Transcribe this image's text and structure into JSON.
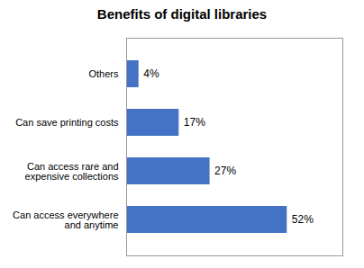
{
  "chart_data": {
    "type": "bar",
    "title": "Benefits of digital libraries",
    "categories": [
      "Others",
      "Can save printing costs",
      "Can access rare and\nexpensive collections",
      "Can access everywhere\nand anytime"
    ],
    "values": [
      4,
      17,
      27,
      52
    ],
    "value_labels": [
      "4%",
      "17%",
      "27%",
      "52%"
    ],
    "color": "#4472C4",
    "orientation": "horizontal",
    "xlim": [
      0,
      70
    ],
    "data_labels": true,
    "tick_labels": "y"
  }
}
